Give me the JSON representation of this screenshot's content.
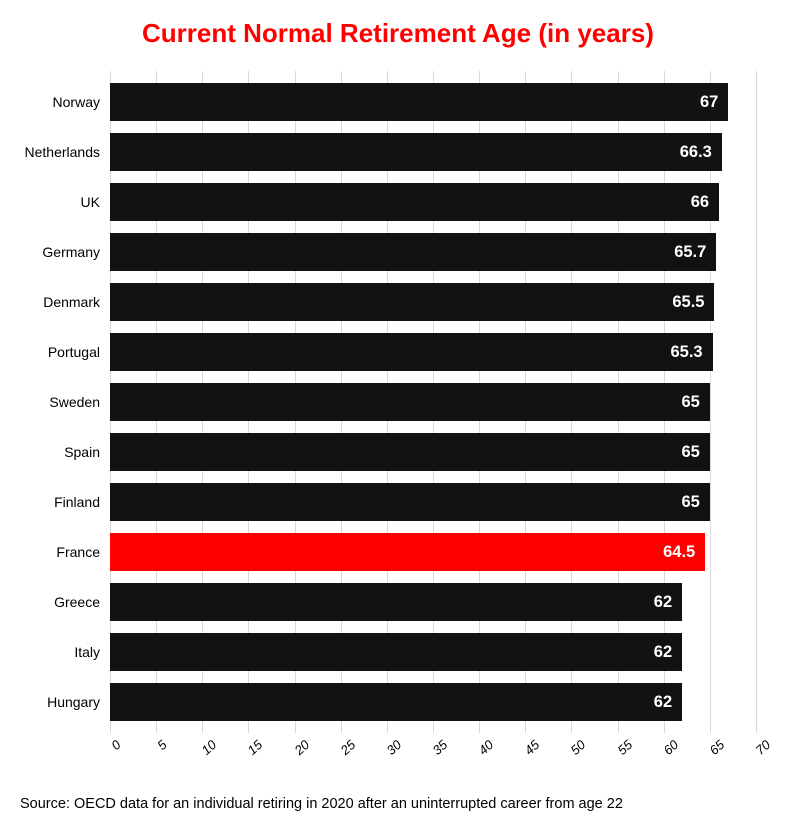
{
  "chart": {
    "type": "bar-horizontal",
    "title": "Current Normal Retirement Age (in years)",
    "title_color": "#ff0000",
    "title_fontsize": 26,
    "title_fontweight": 800,
    "background_color": "#ffffff",
    "grid_color": "#d9d9d9",
    "default_bar_color": "#121212",
    "highlight_bar_color": "#ff0000",
    "value_label_color": "#ffffff",
    "value_label_fontsize": 16.5,
    "value_label_fontweight": 800,
    "category_label_fontsize": 14,
    "category_label_color": "#000000",
    "x_axis": {
      "min": 0,
      "max": 70,
      "tick_step": 5,
      "ticks": [
        0,
        5,
        10,
        15,
        20,
        25,
        30,
        35,
        40,
        45,
        50,
        55,
        60,
        65,
        70
      ],
      "tick_fontsize": 13,
      "tick_rotation_deg": -42,
      "tick_fontstyle": "italic"
    },
    "bars": [
      {
        "label": "Norway",
        "value": 67,
        "display": "67",
        "highlight": false
      },
      {
        "label": "Netherlands",
        "value": 66.3,
        "display": "66.3",
        "highlight": false
      },
      {
        "label": "UK",
        "value": 66,
        "display": "66",
        "highlight": false
      },
      {
        "label": "Germany",
        "value": 65.7,
        "display": "65.7",
        "highlight": false
      },
      {
        "label": "Denmark",
        "value": 65.5,
        "display": "65.5",
        "highlight": false
      },
      {
        "label": "Portugal",
        "value": 65.3,
        "display": "65.3",
        "highlight": false
      },
      {
        "label": "Sweden",
        "value": 65,
        "display": "65",
        "highlight": false
      },
      {
        "label": "Spain",
        "value": 65,
        "display": "65",
        "highlight": false
      },
      {
        "label": "Finland",
        "value": 65,
        "display": "65",
        "highlight": false
      },
      {
        "label": "France",
        "value": 64.5,
        "display": "64.5",
        "highlight": true
      },
      {
        "label": "Greece",
        "value": 62,
        "display": "62",
        "highlight": false
      },
      {
        "label": "Italy",
        "value": 62,
        "display": "62",
        "highlight": false
      },
      {
        "label": "Hungary",
        "value": 62,
        "display": "62",
        "highlight": false
      }
    ],
    "source_note": "Source: OECD data for an individual retiring in 2020 after an uninterrupted career from age 22",
    "source_fontsize": 14.5
  }
}
